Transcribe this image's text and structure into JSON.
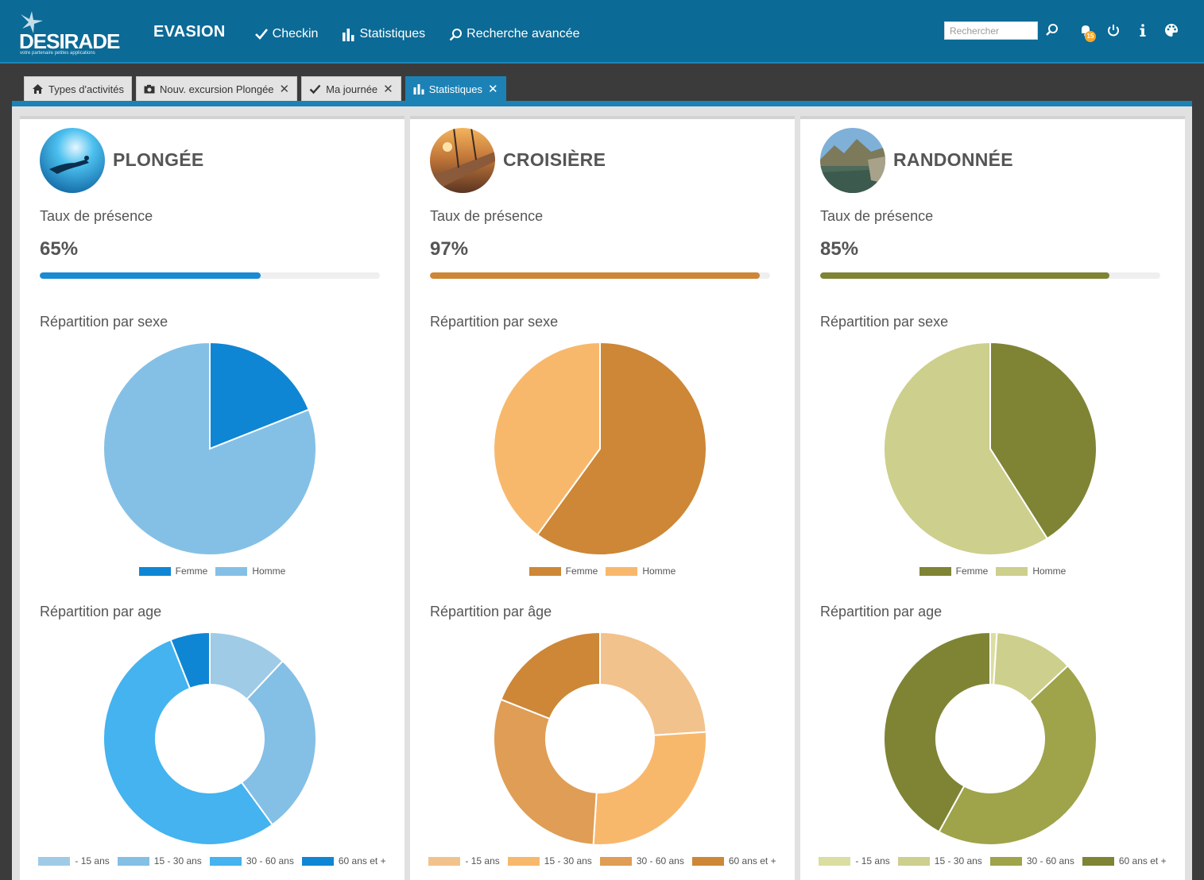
{
  "header": {
    "logo_text": "DESIRADE",
    "logo_tagline": "votre partenaire petites applications",
    "app_name": "EVASION",
    "nav": [
      {
        "label": "Checkin",
        "icon": "check-icon"
      },
      {
        "label": "Statistiques",
        "icon": "bar-chart-icon"
      },
      {
        "label": "Recherche avancée",
        "icon": "search-icon"
      }
    ],
    "search_placeholder": "Rechercher",
    "notification_count": "15"
  },
  "tabs": [
    {
      "label": "Types d'activités",
      "icon": "home-icon",
      "closable": false,
      "active": false
    },
    {
      "label": "Nouv. excursion Plongée",
      "icon": "camera-icon",
      "closable": true,
      "active": false
    },
    {
      "label": "Ma journée",
      "icon": "check-icon",
      "closable": true,
      "active": false
    },
    {
      "label": "Statistiques",
      "icon": "bar-chart-icon",
      "closable": true,
      "active": true
    }
  ],
  "panels": [
    {
      "title": "PLONGÉE",
      "presence_label": "Taux de présence",
      "presence_pct": "65%",
      "presence_value": 65,
      "sex_label": "Répartition par sexe",
      "age_label": "Répartition par age",
      "colors": {
        "accent": "#1a8ad3"
      },
      "sex_colors": [
        "#0f86d4",
        "#84c0e6"
      ],
      "age_colors": [
        "#9fcbe6",
        "#84bfe6",
        "#44b3ef",
        "#0f86d4"
      ]
    },
    {
      "title": "CROISIÈRE",
      "presence_label": "Taux de présence",
      "presence_pct": "97%",
      "presence_value": 97,
      "sex_label": "Répartition par sexe",
      "age_label": "Répartition par âge",
      "colors": {
        "accent": "#cd8736"
      },
      "sex_colors": [
        "#cd8736",
        "#f8b86c"
      ],
      "age_colors": [
        "#f2c28c",
        "#f8b86c",
        "#df9d55",
        "#cd8736"
      ]
    },
    {
      "title": "RANDONNÉE",
      "presence_label": "Taux de présence",
      "presence_pct": "85%",
      "presence_value": 85,
      "sex_label": "Répartition par sexe",
      "age_label": "Répartition par age",
      "colors": {
        "accent": "#7f8435"
      },
      "sex_colors": [
        "#7f8435",
        "#cdcf8c"
      ],
      "age_colors": [
        "#dadea0",
        "#cdcf8c",
        "#9fa34a",
        "#7f8435"
      ]
    }
  ],
  "legend": {
    "sex": [
      "Femme",
      "Homme"
    ],
    "age": [
      "- 15 ans",
      "15 - 30 ans",
      "30 - 60 ans",
      "60 ans et +"
    ]
  },
  "chart_data": [
    {
      "type": "pie",
      "title": "Répartition par sexe",
      "panel": "PLONGÉE",
      "categories": [
        "Femme",
        "Homme"
      ],
      "values": [
        19,
        81
      ],
      "legend": "bottom"
    },
    {
      "type": "pie",
      "title": "Répartition par age",
      "panel": "PLONGÉE",
      "donut": true,
      "categories": [
        "- 15 ans",
        "15 - 30 ans",
        "30 - 60 ans",
        "60 ans et +"
      ],
      "values": [
        12,
        28,
        54,
        6
      ],
      "legend": "bottom"
    },
    {
      "type": "pie",
      "title": "Répartition par sexe",
      "panel": "CROISIÈRE",
      "categories": [
        "Femme",
        "Homme"
      ],
      "values": [
        60,
        40
      ],
      "legend": "bottom"
    },
    {
      "type": "pie",
      "title": "Répartition par âge",
      "panel": "CROISIÈRE",
      "donut": true,
      "categories": [
        "- 15 ans",
        "15 - 30 ans",
        "30 - 60 ans",
        "60 ans et +"
      ],
      "values": [
        24,
        27,
        30,
        19
      ],
      "legend": "bottom"
    },
    {
      "type": "pie",
      "title": "Répartition par sexe",
      "panel": "RANDONNÉE",
      "categories": [
        "Femme",
        "Homme"
      ],
      "values": [
        41,
        59
      ],
      "legend": "bottom"
    },
    {
      "type": "pie",
      "title": "Répartition par age",
      "panel": "RANDONNÉE",
      "donut": true,
      "categories": [
        "- 15 ans",
        "15 - 30 ans",
        "30 - 60 ans",
        "60 ans et +"
      ],
      "values": [
        1,
        12,
        45,
        42
      ],
      "legend": "bottom"
    }
  ]
}
